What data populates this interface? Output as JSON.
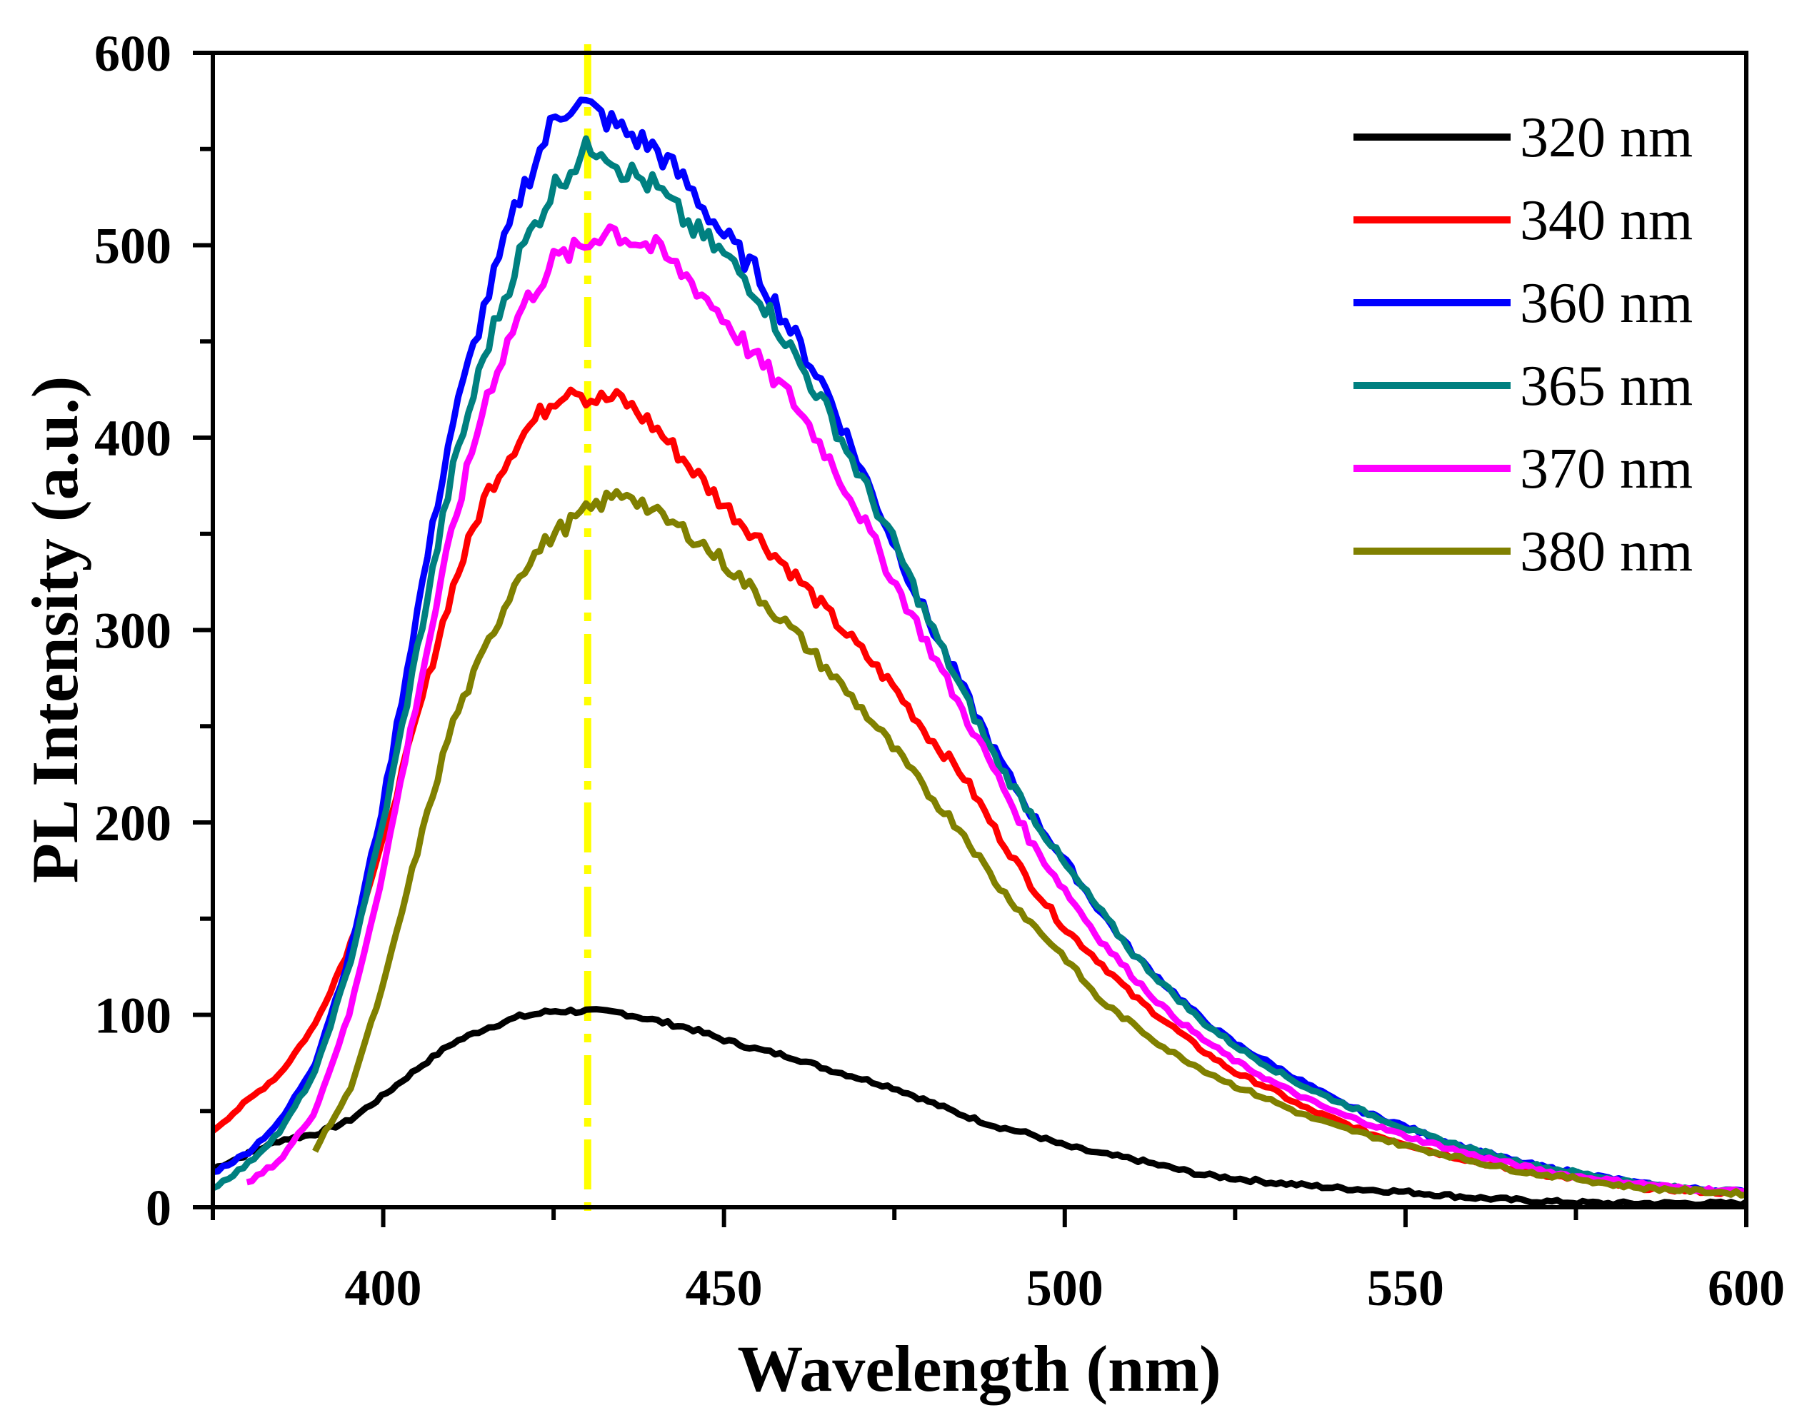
{
  "chart_data": {
    "type": "line",
    "title": "",
    "xlabel": "Wavelength (nm)",
    "ylabel": "PL Intensity (a.u.)",
    "xlim": [
      375,
      600
    ],
    "ylim": [
      0,
      600
    ],
    "xticks": [
      400,
      450,
      500,
      550,
      600
    ],
    "yticks": [
      0,
      100,
      200,
      300,
      400,
      500,
      600
    ],
    "x_minor_step": 25,
    "y_minor_step": 50,
    "legend_position": "top-right",
    "reference_line": {
      "x": 430,
      "color": "#ffff00",
      "style": "dash-dot"
    },
    "series": [
      {
        "name": "320 nm",
        "color": "#000000",
        "points": [
          [
            375,
            20
          ],
          [
            385,
            35
          ],
          [
            390,
            38
          ],
          [
            395,
            45
          ],
          [
            400,
            58
          ],
          [
            405,
            72
          ],
          [
            410,
            85
          ],
          [
            415,
            93
          ],
          [
            420,
            99
          ],
          [
            425,
            102
          ],
          [
            430,
            102
          ],
          [
            435,
            101
          ],
          [
            440,
            97
          ],
          [
            445,
            93
          ],
          [
            450,
            87
          ],
          [
            455,
            82
          ],
          [
            460,
            78
          ],
          [
            465,
            72
          ],
          [
            470,
            67
          ],
          [
            475,
            62
          ],
          [
            480,
            55
          ],
          [
            485,
            48
          ],
          [
            490,
            42
          ],
          [
            495,
            38
          ],
          [
            500,
            32
          ],
          [
            505,
            28
          ],
          [
            510,
            25
          ],
          [
            515,
            21
          ],
          [
            520,
            17
          ],
          [
            525,
            15
          ],
          [
            530,
            13
          ],
          [
            540,
            10
          ],
          [
            550,
            8
          ],
          [
            560,
            5
          ],
          [
            570,
            3
          ],
          [
            580,
            2
          ],
          [
            590,
            2
          ],
          [
            600,
            2
          ]
        ]
      },
      {
        "name": "340 nm",
        "color": "#ff0000",
        "points": [
          [
            375,
            40
          ],
          [
            380,
            55
          ],
          [
            385,
            70
          ],
          [
            390,
            95
          ],
          [
            395,
            135
          ],
          [
            400,
            190
          ],
          [
            405,
            255
          ],
          [
            410,
            320
          ],
          [
            415,
            370
          ],
          [
            420,
            400
          ],
          [
            425,
            420
          ],
          [
            428,
            428
          ],
          [
            430,
            420
          ],
          [
            435,
            420
          ],
          [
            440,
            405
          ],
          [
            445,
            385
          ],
          [
            450,
            365
          ],
          [
            455,
            348
          ],
          [
            460,
            330
          ],
          [
            465,
            310
          ],
          [
            470,
            290
          ],
          [
            475,
            270
          ],
          [
            480,
            245
          ],
          [
            485,
            225
          ],
          [
            490,
            195
          ],
          [
            495,
            168
          ],
          [
            500,
            145
          ],
          [
            505,
            128
          ],
          [
            510,
            110
          ],
          [
            515,
            96
          ],
          [
            520,
            82
          ],
          [
            525,
            70
          ],
          [
            530,
            62
          ],
          [
            535,
            52
          ],
          [
            540,
            45
          ],
          [
            545,
            38
          ],
          [
            550,
            33
          ],
          [
            555,
            28
          ],
          [
            560,
            24
          ],
          [
            565,
            20
          ],
          [
            570,
            17
          ],
          [
            575,
            15
          ],
          [
            580,
            12
          ],
          [
            585,
            10
          ],
          [
            590,
            9
          ],
          [
            595,
            8
          ],
          [
            600,
            7
          ]
        ]
      },
      {
        "name": "360 nm",
        "color": "#0000ff",
        "points": [
          [
            375,
            18
          ],
          [
            380,
            28
          ],
          [
            385,
            45
          ],
          [
            390,
            75
          ],
          [
            395,
            130
          ],
          [
            400,
            210
          ],
          [
            405,
            310
          ],
          [
            410,
            405
          ],
          [
            415,
            470
          ],
          [
            420,
            525
          ],
          [
            425,
            565
          ],
          [
            428,
            575
          ],
          [
            430,
            572
          ],
          [
            435,
            560
          ],
          [
            440,
            550
          ],
          [
            445,
            530
          ],
          [
            450,
            505
          ],
          [
            455,
            485
          ],
          [
            460,
            455
          ],
          [
            465,
            425
          ],
          [
            470,
            385
          ],
          [
            475,
            345
          ],
          [
            480,
            305
          ],
          [
            485,
            270
          ],
          [
            490,
            235
          ],
          [
            495,
            205
          ],
          [
            500,
            180
          ],
          [
            505,
            155
          ],
          [
            510,
            132
          ],
          [
            515,
            115
          ],
          [
            520,
            98
          ],
          [
            525,
            85
          ],
          [
            530,
            75
          ],
          [
            535,
            65
          ],
          [
            540,
            55
          ],
          [
            545,
            48
          ],
          [
            550,
            42
          ],
          [
            555,
            35
          ],
          [
            560,
            30
          ],
          [
            565,
            25
          ],
          [
            570,
            21
          ],
          [
            575,
            18
          ],
          [
            580,
            15
          ],
          [
            585,
            12
          ],
          [
            590,
            10
          ],
          [
            595,
            9
          ],
          [
            600,
            8
          ]
        ]
      },
      {
        "name": "365 nm",
        "color": "#008080",
        "points": [
          [
            375,
            10
          ],
          [
            380,
            22
          ],
          [
            385,
            40
          ],
          [
            390,
            70
          ],
          [
            395,
            125
          ],
          [
            400,
            200
          ],
          [
            405,
            290
          ],
          [
            410,
            380
          ],
          [
            415,
            445
          ],
          [
            420,
            495
          ],
          [
            425,
            530
          ],
          [
            430,
            550
          ],
          [
            432,
            552
          ],
          [
            435,
            540
          ],
          [
            440,
            530
          ],
          [
            445,
            510
          ],
          [
            450,
            495
          ],
          [
            455,
            475
          ],
          [
            460,
            445
          ],
          [
            465,
            415
          ],
          [
            470,
            380
          ],
          [
            475,
            345
          ],
          [
            480,
            305
          ],
          [
            485,
            268
          ],
          [
            490,
            232
          ],
          [
            495,
            205
          ],
          [
            500,
            178
          ],
          [
            505,
            155
          ],
          [
            510,
            132
          ],
          [
            515,
            114
          ],
          [
            520,
            97
          ],
          [
            525,
            84
          ],
          [
            530,
            73
          ],
          [
            535,
            63
          ],
          [
            540,
            55
          ],
          [
            545,
            48
          ],
          [
            550,
            41
          ],
          [
            555,
            35
          ],
          [
            560,
            30
          ],
          [
            565,
            25
          ],
          [
            570,
            21
          ],
          [
            575,
            18
          ],
          [
            580,
            15
          ],
          [
            585,
            12
          ],
          [
            590,
            10
          ],
          [
            595,
            9
          ],
          [
            600,
            8
          ]
        ]
      },
      {
        "name": "370 nm",
        "color": "#ff00ff",
        "points": [
          [
            380,
            12
          ],
          [
            385,
            25
          ],
          [
            390,
            50
          ],
          [
            395,
            100
          ],
          [
            400,
            175
          ],
          [
            405,
            265
          ],
          [
            410,
            350
          ],
          [
            415,
            420
          ],
          [
            420,
            465
          ],
          [
            425,
            492
          ],
          [
            430,
            500
          ],
          [
            433,
            510
          ],
          [
            435,
            505
          ],
          [
            440,
            498
          ],
          [
            445,
            482
          ],
          [
            450,
            462
          ],
          [
            455,
            440
          ],
          [
            460,
            420
          ],
          [
            465,
            392
          ],
          [
            470,
            360
          ],
          [
            475,
            325
          ],
          [
            480,
            292
          ],
          [
            485,
            258
          ],
          [
            490,
            225
          ],
          [
            495,
            190
          ],
          [
            500,
            165
          ],
          [
            505,
            140
          ],
          [
            510,
            120
          ],
          [
            515,
            102
          ],
          [
            520,
            88
          ],
          [
            525,
            76
          ],
          [
            530,
            66
          ],
          [
            535,
            57
          ],
          [
            540,
            49
          ],
          [
            545,
            43
          ],
          [
            550,
            37
          ],
          [
            555,
            32
          ],
          [
            560,
            27
          ],
          [
            565,
            23
          ],
          [
            570,
            19
          ],
          [
            575,
            16
          ],
          [
            580,
            14
          ],
          [
            585,
            12
          ],
          [
            590,
            10
          ],
          [
            595,
            9
          ],
          [
            600,
            8
          ]
        ]
      },
      {
        "name": "380 nm",
        "color": "#808000",
        "points": [
          [
            390,
            30
          ],
          [
            395,
            60
          ],
          [
            400,
            115
          ],
          [
            405,
            185
          ],
          [
            410,
            250
          ],
          [
            415,
            290
          ],
          [
            420,
            330
          ],
          [
            425,
            350
          ],
          [
            430,
            362
          ],
          [
            433,
            368
          ],
          [
            436,
            372
          ],
          [
            440,
            360
          ],
          [
            445,
            350
          ],
          [
            450,
            335
          ],
          [
            455,
            318
          ],
          [
            460,
            300
          ],
          [
            465,
            280
          ],
          [
            470,
            260
          ],
          [
            475,
            238
          ],
          [
            480,
            215
          ],
          [
            485,
            195
          ],
          [
            490,
            168
          ],
          [
            495,
            148
          ],
          [
            500,
            130
          ],
          [
            505,
            108
          ],
          [
            510,
            95
          ],
          [
            515,
            82
          ],
          [
            520,
            72
          ],
          [
            525,
            63
          ],
          [
            530,
            56
          ],
          [
            535,
            48
          ],
          [
            540,
            42
          ],
          [
            545,
            37
          ],
          [
            550,
            32
          ],
          [
            555,
            28
          ],
          [
            560,
            24
          ],
          [
            565,
            20
          ],
          [
            570,
            17
          ],
          [
            575,
            15
          ],
          [
            580,
            12
          ],
          [
            585,
            10
          ],
          [
            590,
            9
          ],
          [
            595,
            8
          ],
          [
            600,
            7
          ]
        ]
      }
    ]
  }
}
